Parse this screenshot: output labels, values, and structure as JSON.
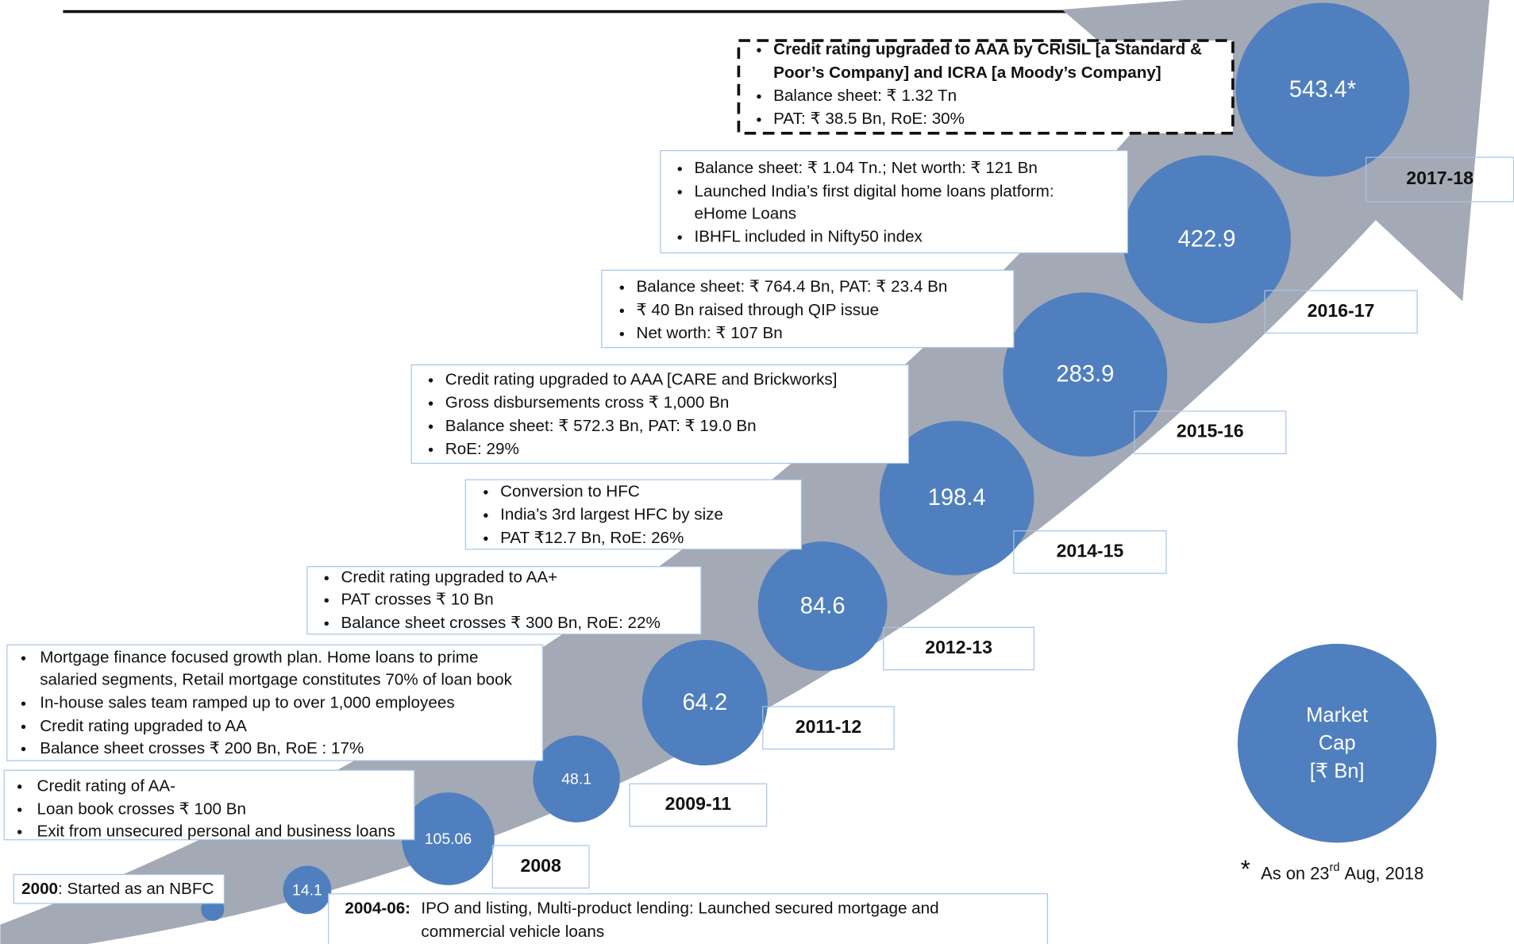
{
  "milestones": [
    {
      "year": "2000",
      "description": ": Started as an NBFC"
    },
    {
      "year": "2004-06:",
      "value": "14.1",
      "description": [
        "IPO and listing, Multi-product lending: Launched secured mortgage and",
        "commercial vehicle loans"
      ]
    },
    {
      "year": "2008",
      "value": "105.06",
      "bullets": [
        [
          "Credit rating of AA-"
        ],
        [
          "Loan book crosses ₹ 100 Bn"
        ],
        [
          "Exit from unsecured personal and business loans"
        ]
      ]
    },
    {
      "year": "2009-11",
      "value": "48.1",
      "bullets": [
        [
          "Mortgage finance focused growth plan. Home loans to prime",
          "salaried segments, Retail mortgage constitutes 70% of loan book"
        ],
        [
          "In-house sales team ramped up to over 1,000 employees"
        ],
        [
          "Credit rating upgraded to AA"
        ],
        [
          "Balance sheet crosses ₹ 200 Bn, RoE : 17%"
        ]
      ]
    },
    {
      "year": "2011-12",
      "value": "64.2",
      "bullets": [
        [
          "Credit rating upgraded to AA+"
        ],
        [
          "PAT crosses ₹ 10 Bn"
        ],
        [
          "Balance sheet crosses ₹ 300 Bn, RoE: 22%"
        ]
      ]
    },
    {
      "year": "2012-13",
      "value": "84.6",
      "bullets": [
        [
          "Conversion to HFC"
        ],
        [
          "India’s 3rd largest HFC by size"
        ],
        [
          "PAT ₹12.7 Bn, RoE: 26%"
        ]
      ]
    },
    {
      "year": "2014-15",
      "value": "198.4",
      "bullets": [
        [
          "Credit rating upgraded to AAA [CARE and Brickworks]"
        ],
        [
          "Gross disbursements cross ₹ 1,000 Bn"
        ],
        [
          "Balance sheet: ₹ 572.3 Bn, PAT: ₹ 19.0 Bn"
        ],
        [
          "RoE: 29%"
        ]
      ]
    },
    {
      "year": "2015-16",
      "value": "283.9",
      "bullets": [
        [
          "Balance sheet: ₹ 764.4 Bn, PAT: ₹ 23.4 Bn"
        ],
        [
          "₹ 40 Bn raised through QIP issue"
        ],
        [
          "Net worth: ₹ 107 Bn"
        ]
      ]
    },
    {
      "year": "2016-17",
      "value": "422.9",
      "bullets": [
        [
          "Balance sheet: ₹ 1.04 Tn.; Net worth: ₹ 121 Bn"
        ],
        [
          "Launched India’s first digital home loans platform:",
          "eHome Loans"
        ],
        [
          "IBHFL included in Nifty50 index"
        ]
      ]
    },
    {
      "year": "2017-18",
      "value": "543.4*",
      "bullets": [
        [
          "Credit rating upgraded to AAA by CRISIL [a Standard &",
          "Poor’s Company] and ICRA [a Moody’s Company]"
        ],
        [
          "Balance sheet: ₹ 1.32 Tn"
        ],
        [
          "PAT: ₹ 38.5 Bn, RoE: 30%"
        ]
      ]
    }
  ],
  "legend": [
    "Market",
    "Cap",
    "[₹ Bn]"
  ],
  "footnote": {
    "mark": "*",
    "text": "As on 23",
    "superscript": "rd",
    "rest": "Aug, 2018"
  }
}
